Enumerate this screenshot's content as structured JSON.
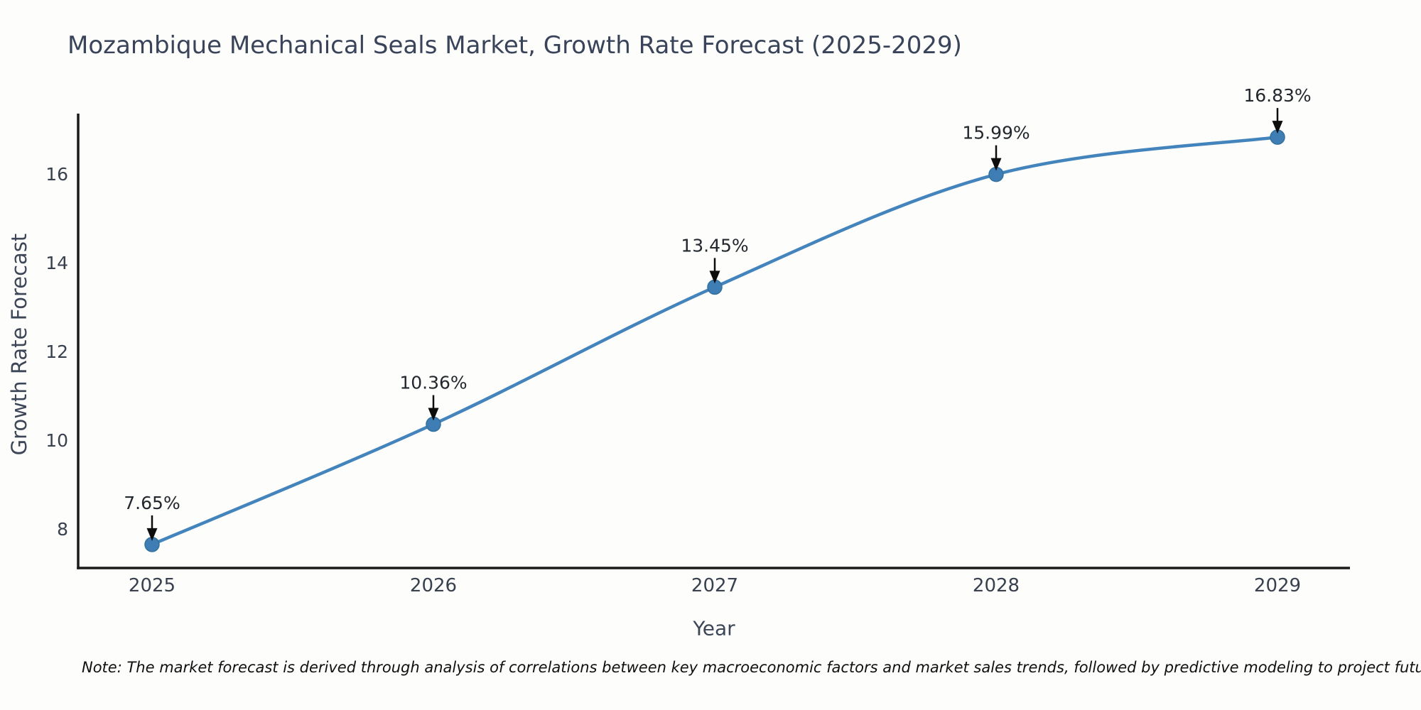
{
  "chart_data": {
    "type": "line",
    "title": "Mozambique Mechanical Seals Market, Growth Rate Forecast (2025-2029)",
    "xlabel": "Year",
    "ylabel": "Growth Rate Forecast",
    "categories": [
      "2025",
      "2026",
      "2027",
      "2028",
      "2029"
    ],
    "values": [
      7.65,
      10.36,
      13.45,
      15.99,
      16.83
    ],
    "point_labels": [
      "7.65%",
      "10.36%",
      "13.45%",
      "15.99%",
      "16.83%"
    ],
    "yticks": [
      8,
      10,
      12,
      14,
      16
    ],
    "ylim": [
      7.12,
      17.36
    ],
    "grid": false,
    "legend": "none",
    "line_smoothing": "spline",
    "note": "Note: The market forecast is derived through analysis of correlations between key macroeconomic factors and market sales trends, followed by predictive modeling to project future sales.",
    "colors": {
      "line": "#4484bd",
      "marker": "#3f7eb5",
      "marker_edge": "#33719f",
      "axis": "#1a1a1a",
      "title_text": "#39445a",
      "axis_label_text": "#3c4657",
      "tick_text": "#39414f",
      "annotation_text": "#23272e",
      "arrow": "#0d0d0d",
      "background": "#fdfdfb"
    }
  }
}
